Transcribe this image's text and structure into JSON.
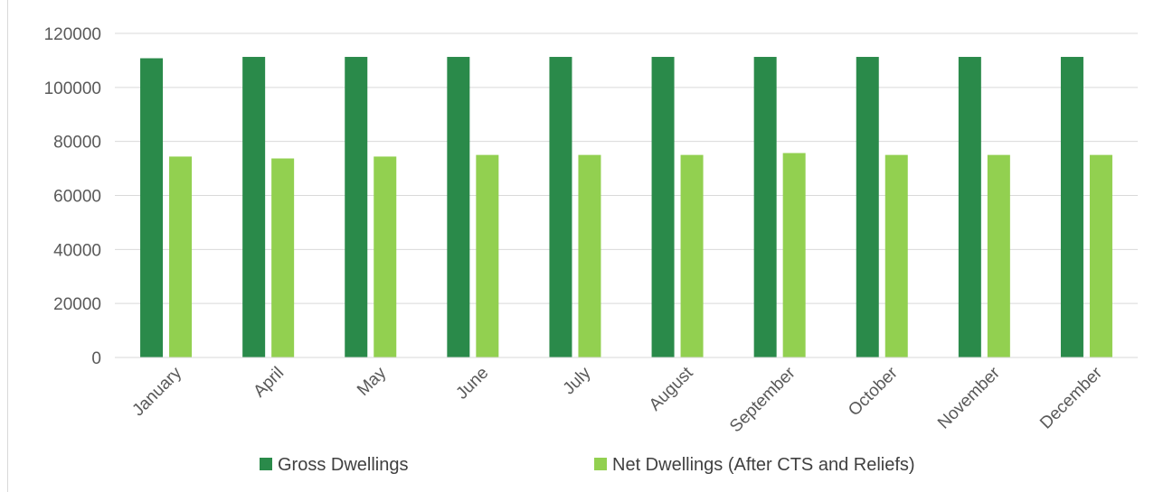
{
  "chart_data": {
    "type": "bar",
    "categories": [
      "January",
      "April",
      "May",
      "June",
      "July",
      "August",
      "September",
      "October",
      "November",
      "December"
    ],
    "series": [
      {
        "name": "Gross Dwellings",
        "color": "#2a8a4a",
        "values": [
          110800,
          111300,
          111300,
          111300,
          111300,
          111300,
          111300,
          111300,
          111300,
          111300
        ]
      },
      {
        "name": "Net Dwellings (After CTS and Reliefs)",
        "color": "#92d050",
        "values": [
          74400,
          73700,
          74400,
          75000,
          75000,
          75000,
          75700,
          75000,
          75000,
          75000
        ]
      }
    ],
    "ylim": [
      0,
      120000
    ],
    "yticks": [
      0,
      20000,
      40000,
      60000,
      80000,
      100000,
      120000
    ],
    "grid": true,
    "legend_position": "bottom",
    "xlabel": "",
    "ylabel": "",
    "title": ""
  }
}
